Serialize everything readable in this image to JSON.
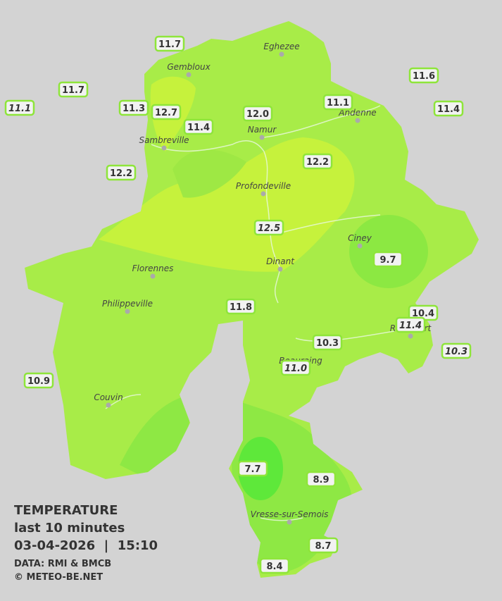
{
  "legend": {
    "title": "TEMPERATURE",
    "subtitle": "last 10 minutes",
    "datetime": "03-04-2026  |  15:10",
    "source": "DATA: RMI & BMCB",
    "copyright": "© METEO-BE.NET"
  },
  "places": [
    "Eghezee",
    "Gembloux",
    "Andenne",
    "Namur",
    "Sambreville",
    "Profondeville",
    "Ciney",
    "Dinant",
    "Florennes",
    "Philippeville",
    "Rochefort",
    "Beauraing",
    "Couvin",
    "Vresse-sur-Semois"
  ],
  "stations": [
    "11.7",
    "11.7",
    "11.1",
    "11.3",
    "12.7",
    "11.4",
    "12.0",
    "11.1",
    "11.6",
    "11.4",
    "12.2",
    "12.2",
    "12.5",
    "9.7",
    "11.8",
    "10.4",
    "11.4",
    "10.3",
    "11.0",
    "10.3",
    "10.9",
    "7.7",
    "8.9",
    "8.7",
    "8.4"
  ]
}
